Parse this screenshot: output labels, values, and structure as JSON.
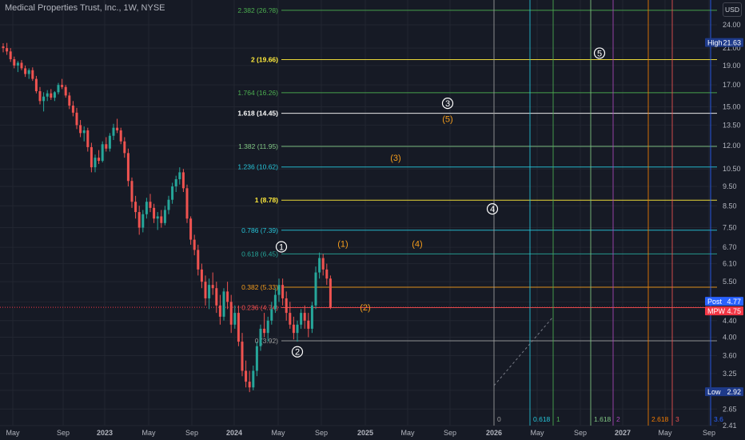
{
  "title": "Medical Properties Trust, Inc., 1W, NYSE",
  "currency": "USD",
  "colors": {
    "bg": "#161a25",
    "grid": "#222631",
    "up": "#26a69a",
    "down": "#ef5350",
    "axis_text": "#b2b5be",
    "white": "#ffffff",
    "orange": "#f59d1c",
    "red_line": "#f23645"
  },
  "chart_data": {
    "type": "candlestick",
    "title": "Medical Properties Trust, Inc., 1W, NYSE",
    "y_scale": "log",
    "y_ticks": [
      24.0,
      21.0,
      19.0,
      17.0,
      15.0,
      13.5,
      12.0,
      10.5,
      9.5,
      8.5,
      7.5,
      6.7,
      6.1,
      5.5,
      4.9,
      4.4,
      4.0,
      3.6,
      3.25,
      2.95,
      2.65,
      2.41
    ],
    "x_ticks": [
      "May",
      "Sep",
      "2023",
      "May",
      "Sep",
      "2024",
      "May",
      "Sep",
      "2025",
      "May",
      "Sep",
      "2026",
      "May",
      "Sep",
      "2027",
      "May",
      "Sep"
    ],
    "ohlc_weekly": [
      [
        21.2,
        21.6,
        20.5,
        21.0
      ],
      [
        21.0,
        21.63,
        20.2,
        20.6
      ],
      [
        20.6,
        21.0,
        19.4,
        19.7
      ],
      [
        19.7,
        20.0,
        18.7,
        19.0
      ],
      [
        19.0,
        19.5,
        18.3,
        19.3
      ],
      [
        19.3,
        19.6,
        18.5,
        18.7
      ],
      [
        18.7,
        19.0,
        17.8,
        18.1
      ],
      [
        18.1,
        18.7,
        17.6,
        18.5
      ],
      [
        18.5,
        18.8,
        17.4,
        17.6
      ],
      [
        17.6,
        17.9,
        16.2,
        16.4
      ],
      [
        16.4,
        16.8,
        15.2,
        15.5
      ],
      [
        15.5,
        16.3,
        14.6,
        15.9
      ],
      [
        15.9,
        16.5,
        15.5,
        16.2
      ],
      [
        16.2,
        16.6,
        15.6,
        15.8
      ],
      [
        15.8,
        16.4,
        15.5,
        16.3
      ],
      [
        16.3,
        17.2,
        16.1,
        17.0
      ],
      [
        17.0,
        17.6,
        16.6,
        16.8
      ],
      [
        16.8,
        17.0,
        15.8,
        16.0
      ],
      [
        16.0,
        16.3,
        14.8,
        15.1
      ],
      [
        15.1,
        15.5,
        14.2,
        14.5
      ],
      [
        14.5,
        14.9,
        13.2,
        13.5
      ],
      [
        13.5,
        13.9,
        12.6,
        12.9
      ],
      [
        12.9,
        13.4,
        12.3,
        13.1
      ],
      [
        13.1,
        13.3,
        11.6,
        11.9
      ],
      [
        11.9,
        12.2,
        10.3,
        10.6
      ],
      [
        10.6,
        11.4,
        10.3,
        11.2
      ],
      [
        11.2,
        11.7,
        10.8,
        11.0
      ],
      [
        11.0,
        12.3,
        10.9,
        12.1
      ],
      [
        12.1,
        12.6,
        11.6,
        11.8
      ],
      [
        11.8,
        12.9,
        11.6,
        12.7
      ],
      [
        12.7,
        13.6,
        12.4,
        13.3
      ],
      [
        13.3,
        14.0,
        12.9,
        13.1
      ],
      [
        13.1,
        13.3,
        12.1,
        12.3
      ],
      [
        12.3,
        12.6,
        11.2,
        11.5
      ],
      [
        11.5,
        11.8,
        9.5,
        9.8
      ],
      [
        9.8,
        10.0,
        8.4,
        8.7
      ],
      [
        8.7,
        9.0,
        7.9,
        8.2
      ],
      [
        8.2,
        8.5,
        7.2,
        7.5
      ],
      [
        7.5,
        8.3,
        7.3,
        8.1
      ],
      [
        8.1,
        8.9,
        7.9,
        8.7
      ],
      [
        8.7,
        9.1,
        8.2,
        8.4
      ],
      [
        8.4,
        8.6,
        7.7,
        7.9
      ],
      [
        7.9,
        8.2,
        7.4,
        8.0
      ],
      [
        8.0,
        8.3,
        7.5,
        7.7
      ],
      [
        7.7,
        8.5,
        7.6,
        8.3
      ],
      [
        8.3,
        9.0,
        8.1,
        8.8
      ],
      [
        8.8,
        9.7,
        8.6,
        9.5
      ],
      [
        9.5,
        10.1,
        9.2,
        9.9
      ],
      [
        9.9,
        10.6,
        9.6,
        10.3
      ],
      [
        10.3,
        10.5,
        9.2,
        9.4
      ],
      [
        9.4,
        9.6,
        7.7,
        7.9
      ],
      [
        7.9,
        8.0,
        6.8,
        7.0
      ],
      [
        7.0,
        7.2,
        6.4,
        6.6
      ],
      [
        6.6,
        6.8,
        5.7,
        5.9
      ],
      [
        5.9,
        6.1,
        5.3,
        5.5
      ],
      [
        5.5,
        5.7,
        4.8,
        5.0
      ],
      [
        5.0,
        5.6,
        4.7,
        5.4
      ],
      [
        5.4,
        5.8,
        5.1,
        5.3
      ],
      [
        5.3,
        5.5,
        4.6,
        4.8
      ],
      [
        4.8,
        5.1,
        4.3,
        4.5
      ],
      [
        4.5,
        5.3,
        4.4,
        5.2
      ],
      [
        5.2,
        5.5,
        4.7,
        4.9
      ],
      [
        4.9,
        5.1,
        4.1,
        4.3
      ],
      [
        4.3,
        4.8,
        4.2,
        4.6
      ],
      [
        4.6,
        4.8,
        3.8,
        3.9
      ],
      [
        3.9,
        4.1,
        3.2,
        3.3
      ],
      [
        3.3,
        3.5,
        3.0,
        3.1
      ],
      [
        3.1,
        3.3,
        2.92,
        3.0
      ],
      [
        3.0,
        3.4,
        2.95,
        3.3
      ],
      [
        3.3,
        3.9,
        3.2,
        3.8
      ],
      [
        3.8,
        4.3,
        3.7,
        4.2
      ],
      [
        4.2,
        4.6,
        4.0,
        4.1
      ],
      [
        4.1,
        4.5,
        3.9,
        4.4
      ],
      [
        4.4,
        4.9,
        4.3,
        4.7
      ],
      [
        4.7,
        5.3,
        4.6,
        5.1
      ],
      [
        5.1,
        5.6,
        4.9,
        5.4
      ],
      [
        5.4,
        5.6,
        4.8,
        5.0
      ],
      [
        5.0,
        5.2,
        4.4,
        4.6
      ],
      [
        4.6,
        4.9,
        4.2,
        4.3
      ],
      [
        4.3,
        4.5,
        3.95,
        4.1
      ],
      [
        4.1,
        4.4,
        3.9,
        4.3
      ],
      [
        4.3,
        4.7,
        4.2,
        4.6
      ],
      [
        4.6,
        4.8,
        4.2,
        4.4
      ],
      [
        4.4,
        4.6,
        4.0,
        4.2
      ],
      [
        4.2,
        4.9,
        4.1,
        4.8
      ],
      [
        4.8,
        6.0,
        4.7,
        5.8
      ],
      [
        5.8,
        6.5,
        5.6,
        6.3
      ],
      [
        6.3,
        6.45,
        5.7,
        5.9
      ],
      [
        5.9,
        6.1,
        5.4,
        5.6
      ],
      [
        5.6,
        5.7,
        4.7,
        4.75
      ]
    ],
    "fib_levels": [
      {
        "label": "2.382 (26.?8)",
        "price": 26.08,
        "color": "#4caf50"
      },
      {
        "label": "2 (19.66)",
        "price": 19.66,
        "color": "#ffeb3b"
      },
      {
        "label": "1.764 (16.26)",
        "price": 16.26,
        "color": "#4caf50"
      },
      {
        "label": "1.618 (14.45)",
        "price": 14.45,
        "color": "#ffffff"
      },
      {
        "label": "1.382 (11.95)",
        "price": 11.95,
        "color": "#81c784"
      },
      {
        "label": "1.236 (10.62)",
        "price": 10.62,
        "color": "#26c6da"
      },
      {
        "label": "1 (8.78)",
        "price": 8.78,
        "color": "#ffeb3b"
      },
      {
        "label": "0.786 (7.39)",
        "price": 7.39,
        "color": "#26c6da"
      },
      {
        "label": "0.618 (6.45)",
        "price": 6.45,
        "color": "#26a69a"
      },
      {
        "label": "0.382 (5.33)",
        "price": 5.33,
        "color": "#f59d1c"
      },
      {
        "label": "0.236 (4.74)",
        "price": 4.74,
        "color": "#ef5350"
      },
      {
        "label": "0 (3.92)",
        "price": 3.92,
        "color": "#9e9e9e"
      }
    ],
    "time_fibs": [
      {
        "label": "0",
        "color": "#9e9e9e"
      },
      {
        "label": "0.618",
        "color": "#26c6da"
      },
      {
        "label": "1",
        "color": "#4caf50"
      },
      {
        "label": "1.618",
        "color": "#81c784"
      },
      {
        "label": "2",
        "color": "#ab47bc"
      },
      {
        "label": "2.618",
        "color": "#f57c00"
      },
      {
        "label": "3",
        "color": "#ef5350"
      },
      {
        "label": "3.6",
        "color": "#2962ff"
      }
    ],
    "waves_white": [
      {
        "label": "1",
        "price": 6.72
      },
      {
        "label": "2",
        "price": 3.68
      },
      {
        "label": "3",
        "price": 15.3
      },
      {
        "label": "4",
        "price": 8.35
      },
      {
        "label": "5",
        "price": 20.4
      }
    ],
    "waves_orange": [
      {
        "label": "(1)",
        "price": 6.85
      },
      {
        "label": "(2)",
        "price": 4.75
      },
      {
        "label": "(3)",
        "price": 11.2
      },
      {
        "label": "(4)",
        "price": 6.85
      },
      {
        "label": "(5)",
        "price": 14.0
      }
    ],
    "price_tags": [
      {
        "label": "High",
        "value": "21.63",
        "price": 21.63,
        "bg": "#1e3a8a"
      },
      {
        "label": "Post",
        "value": "4.77",
        "price": 4.77,
        "bg": "#2962ff"
      },
      {
        "label": "MPW",
        "value": "4.75",
        "price": 4.75,
        "bg": "#f23645"
      },
      {
        "label": "Low",
        "value": "2.92",
        "price": 2.92,
        "bg": "#1e3a8a"
      }
    ],
    "current_price": 4.75
  }
}
